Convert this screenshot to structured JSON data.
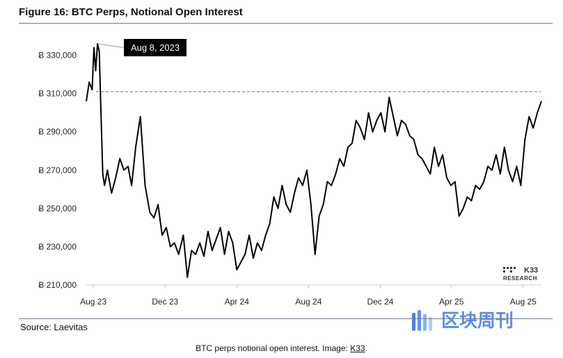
{
  "figure_title": "Figure 16: BTC Perps, Notional Open Interest",
  "source": "Source: Laevitas",
  "caption_text": "BTC perps notional open interest. Image: ",
  "caption_link": "K33",
  "caption_end": ".",
  "brand": {
    "logo_top": "K33",
    "logo_bottom": "RESEARCH"
  },
  "watermark": "区块周刊",
  "colors": {
    "line": "#000000",
    "reference": "#c0504d",
    "rule": "#6b7c8c",
    "callout_bg": "#000000"
  },
  "chart_data": {
    "type": "line",
    "title": "Figure 16: BTC Perps, Notional Open Interest",
    "xlabel": "",
    "ylabel": "",
    "x_ticks": [
      "Aug 23",
      "Dec 23",
      "Apr 24",
      "Aug 24",
      "Dec 24",
      "Apr 25",
      "Aug 25"
    ],
    "y_ticks": [
      "Ƀ 210,000",
      "Ƀ 230,000",
      "Ƀ 250,000",
      "Ƀ 270,000",
      "Ƀ 290,000",
      "Ƀ 310,000",
      "Ƀ 330,000"
    ],
    "ylim": [
      210000,
      340000
    ],
    "xlim": [
      "2023-07-20",
      "2025-09-01"
    ],
    "grid": false,
    "reference_line": {
      "value": 311000,
      "style": "dashed"
    },
    "annotation": {
      "text": "Aug 8, 2023",
      "x": "2023-08-08",
      "y": 336000
    },
    "series": [
      {
        "x": [
          "2023-07-20",
          "2023-07-25",
          "2023-07-30",
          "2023-08-02",
          "2023-08-05",
          "2023-08-08",
          "2023-08-11",
          "2023-08-14",
          "2023-08-17",
          "2023-08-20",
          "2023-08-25",
          "2023-09-01",
          "2023-09-08",
          "2023-09-15",
          "2023-09-22",
          "2023-09-29",
          "2023-10-05",
          "2023-10-12",
          "2023-10-20",
          "2023-10-28",
          "2023-11-05",
          "2023-11-12",
          "2023-11-19",
          "2023-11-26",
          "2023-12-03",
          "2023-12-10",
          "2023-12-17",
          "2023-12-24",
          "2024-01-01",
          "2024-01-08",
          "2024-01-15",
          "2024-01-22",
          "2024-01-29",
          "2024-02-05",
          "2024-02-12",
          "2024-02-19",
          "2024-02-26",
          "2024-03-04",
          "2024-03-11",
          "2024-03-18",
          "2024-03-25",
          "2024-04-01",
          "2024-04-08",
          "2024-04-15",
          "2024-04-22",
          "2024-04-29",
          "2024-05-06",
          "2024-05-13",
          "2024-05-20",
          "2024-05-27",
          "2024-06-03",
          "2024-06-10",
          "2024-06-17",
          "2024-06-24",
          "2024-07-01",
          "2024-07-08",
          "2024-07-15",
          "2024-07-22",
          "2024-07-29",
          "2024-08-05",
          "2024-08-12",
          "2024-08-19",
          "2024-08-26",
          "2024-09-02",
          "2024-09-09",
          "2024-09-16",
          "2024-09-23",
          "2024-09-30",
          "2024-10-07",
          "2024-10-14",
          "2024-10-21",
          "2024-10-28",
          "2024-11-04",
          "2024-11-11",
          "2024-11-18",
          "2024-11-25",
          "2024-12-02",
          "2024-12-09",
          "2024-12-16",
          "2024-12-23",
          "2024-12-30",
          "2025-01-06",
          "2025-01-13",
          "2025-01-20",
          "2025-01-27",
          "2025-02-03",
          "2025-02-10",
          "2025-02-17",
          "2025-02-24",
          "2025-03-03",
          "2025-03-10",
          "2025-03-17",
          "2025-03-24",
          "2025-03-31",
          "2025-04-07",
          "2025-04-14",
          "2025-04-21",
          "2025-04-28",
          "2025-05-05",
          "2025-05-12",
          "2025-05-19",
          "2025-05-26",
          "2025-06-02",
          "2025-06-09",
          "2025-06-16",
          "2025-06-23",
          "2025-06-30",
          "2025-07-07",
          "2025-07-14",
          "2025-07-21",
          "2025-07-28",
          "2025-08-04",
          "2025-08-11",
          "2025-08-18",
          "2025-08-25",
          "2025-09-01"
        ],
        "y": [
          306000,
          316000,
          312000,
          334000,
          322000,
          336000,
          332000,
          300000,
          268000,
          262000,
          270000,
          258000,
          266000,
          276000,
          270000,
          272000,
          262000,
          282000,
          298000,
          262000,
          248000,
          245000,
          252000,
          236000,
          240000,
          230000,
          232000,
          226000,
          236000,
          214000,
          228000,
          226000,
          232000,
          225000,
          238000,
          228000,
          234000,
          240000,
          226000,
          238000,
          232000,
          218000,
          222000,
          226000,
          236000,
          224000,
          232000,
          228000,
          236000,
          242000,
          256000,
          250000,
          262000,
          252000,
          248000,
          258000,
          266000,
          262000,
          270000,
          252000,
          226000,
          246000,
          252000,
          264000,
          262000,
          268000,
          276000,
          272000,
          282000,
          284000,
          296000,
          292000,
          286000,
          300000,
          290000,
          296000,
          300000,
          290000,
          308000,
          298000,
          288000,
          296000,
          294000,
          288000,
          286000,
          278000,
          276000,
          272000,
          268000,
          282000,
          272000,
          278000,
          266000,
          262000,
          264000,
          246000,
          250000,
          256000,
          254000,
          262000,
          260000,
          264000,
          272000,
          270000,
          278000,
          268000,
          282000,
          270000,
          264000,
          272000,
          262000,
          286000,
          298000,
          292000,
          300000,
          306000
        ]
      }
    ]
  }
}
